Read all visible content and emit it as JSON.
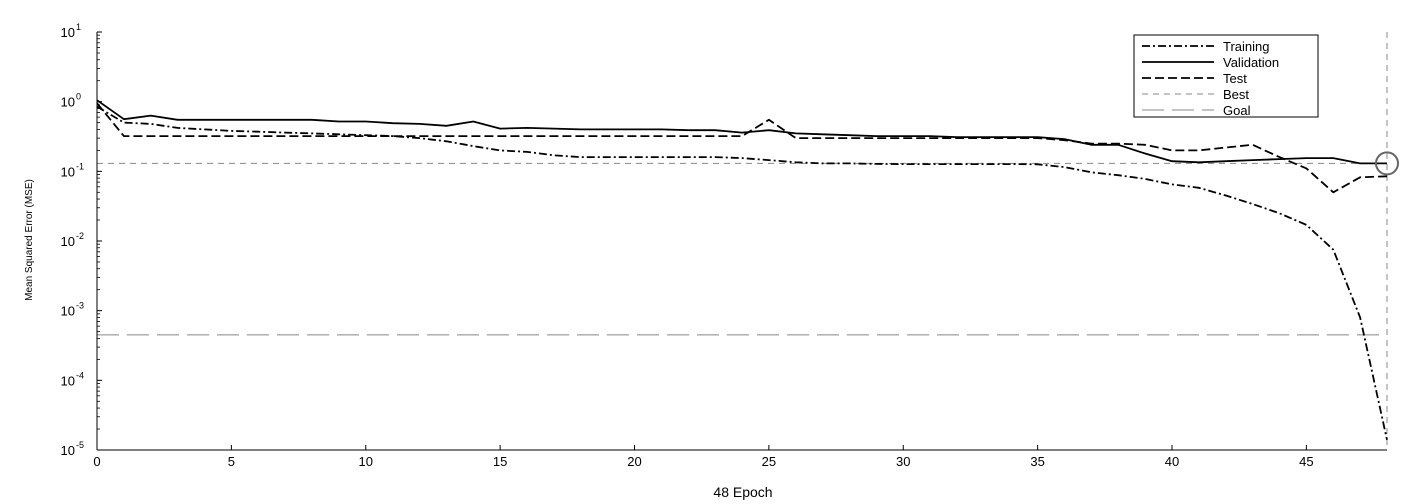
{
  "chart_data": {
    "type": "line",
    "xlabel": "48 Epoch",
    "ylabel": "Mean Squared Error (MSE)",
    "xlim": [
      0,
      48
    ],
    "ylim": [
      1e-05,
      10
    ],
    "yscale": "log",
    "x_ticks": [
      0,
      5,
      10,
      15,
      20,
      25,
      30,
      35,
      40,
      45
    ],
    "y_ticks": [
      {
        "value": 10,
        "base": "10",
        "exp": "1"
      },
      {
        "value": 1,
        "base": "10",
        "exp": "0"
      },
      {
        "value": 0.1,
        "base": "10",
        "exp": "-1"
      },
      {
        "value": 0.01,
        "base": "10",
        "exp": "-2"
      },
      {
        "value": 0.001,
        "base": "10",
        "exp": "-3"
      },
      {
        "value": 0.0001,
        "base": "10",
        "exp": "-4"
      },
      {
        "value": 1e-05,
        "base": "10",
        "exp": "-5"
      }
    ],
    "grid": false,
    "legend_position": "top-right",
    "series": [
      {
        "name": "Training",
        "style": "dashdot",
        "color": "#000000",
        "x": [
          0,
          1,
          2,
          3,
          4,
          5,
          6,
          7,
          8,
          9,
          10,
          11,
          12,
          13,
          14,
          15,
          16,
          17,
          18,
          19,
          20,
          21,
          22,
          23,
          24,
          25,
          26,
          27,
          28,
          29,
          30,
          31,
          32,
          33,
          34,
          35,
          36,
          37,
          38,
          39,
          40,
          41,
          42,
          43,
          44,
          45,
          46,
          47,
          48
        ],
        "y": [
          0.85,
          0.5,
          0.48,
          0.42,
          0.4,
          0.38,
          0.37,
          0.36,
          0.35,
          0.34,
          0.33,
          0.32,
          0.3,
          0.27,
          0.23,
          0.2,
          0.19,
          0.17,
          0.16,
          0.16,
          0.16,
          0.16,
          0.16,
          0.16,
          0.155,
          0.145,
          0.135,
          0.13,
          0.13,
          0.128,
          0.127,
          0.127,
          0.127,
          0.127,
          0.127,
          0.126,
          0.115,
          0.097,
          0.088,
          0.078,
          0.065,
          0.058,
          0.045,
          0.034,
          0.025,
          0.017,
          0.0075,
          0.0008,
          1.4e-05
        ]
      },
      {
        "name": "Validation",
        "style": "solid",
        "color": "#000000",
        "x": [
          0,
          1,
          2,
          3,
          4,
          5,
          6,
          7,
          8,
          9,
          10,
          11,
          12,
          13,
          14,
          15,
          16,
          17,
          18,
          19,
          20,
          21,
          22,
          23,
          24,
          25,
          26,
          27,
          28,
          29,
          30,
          31,
          32,
          33,
          34,
          35,
          36,
          37,
          38,
          39,
          40,
          41,
          42,
          43,
          44,
          45,
          46,
          47,
          48
        ],
        "y": [
          1.05,
          0.56,
          0.63,
          0.55,
          0.55,
          0.55,
          0.55,
          0.55,
          0.55,
          0.52,
          0.52,
          0.49,
          0.48,
          0.45,
          0.52,
          0.41,
          0.42,
          0.41,
          0.4,
          0.4,
          0.4,
          0.4,
          0.39,
          0.39,
          0.36,
          0.39,
          0.35,
          0.34,
          0.33,
          0.32,
          0.32,
          0.32,
          0.31,
          0.31,
          0.31,
          0.31,
          0.29,
          0.24,
          0.24,
          0.18,
          0.14,
          0.135,
          0.14,
          0.145,
          0.15,
          0.155,
          0.155,
          0.13,
          0.13
        ]
      },
      {
        "name": "Test",
        "style": "dashed",
        "color": "#000000",
        "x": [
          0,
          1,
          2,
          3,
          4,
          5,
          6,
          7,
          8,
          9,
          10,
          11,
          12,
          13,
          14,
          15,
          16,
          17,
          18,
          19,
          20,
          21,
          22,
          23,
          24,
          25,
          26,
          27,
          28,
          29,
          30,
          31,
          32,
          33,
          34,
          35,
          36,
          37,
          38,
          39,
          40,
          41,
          42,
          43,
          44,
          45,
          46,
          47,
          48
        ],
        "y": [
          0.95,
          0.32,
          0.32,
          0.32,
          0.32,
          0.32,
          0.32,
          0.32,
          0.32,
          0.32,
          0.32,
          0.32,
          0.32,
          0.32,
          0.32,
          0.32,
          0.32,
          0.32,
          0.32,
          0.32,
          0.32,
          0.32,
          0.32,
          0.32,
          0.32,
          0.55,
          0.3,
          0.3,
          0.3,
          0.3,
          0.3,
          0.3,
          0.3,
          0.3,
          0.3,
          0.3,
          0.28,
          0.25,
          0.25,
          0.24,
          0.2,
          0.2,
          0.22,
          0.24,
          0.16,
          0.11,
          0.05,
          0.082,
          0.085
        ]
      }
    ],
    "best": {
      "label": "Best",
      "value": 0.13,
      "epoch": 48,
      "color": "#888888"
    },
    "goal": {
      "label": "Goal",
      "value": 0.00045,
      "color": "#888888"
    }
  }
}
